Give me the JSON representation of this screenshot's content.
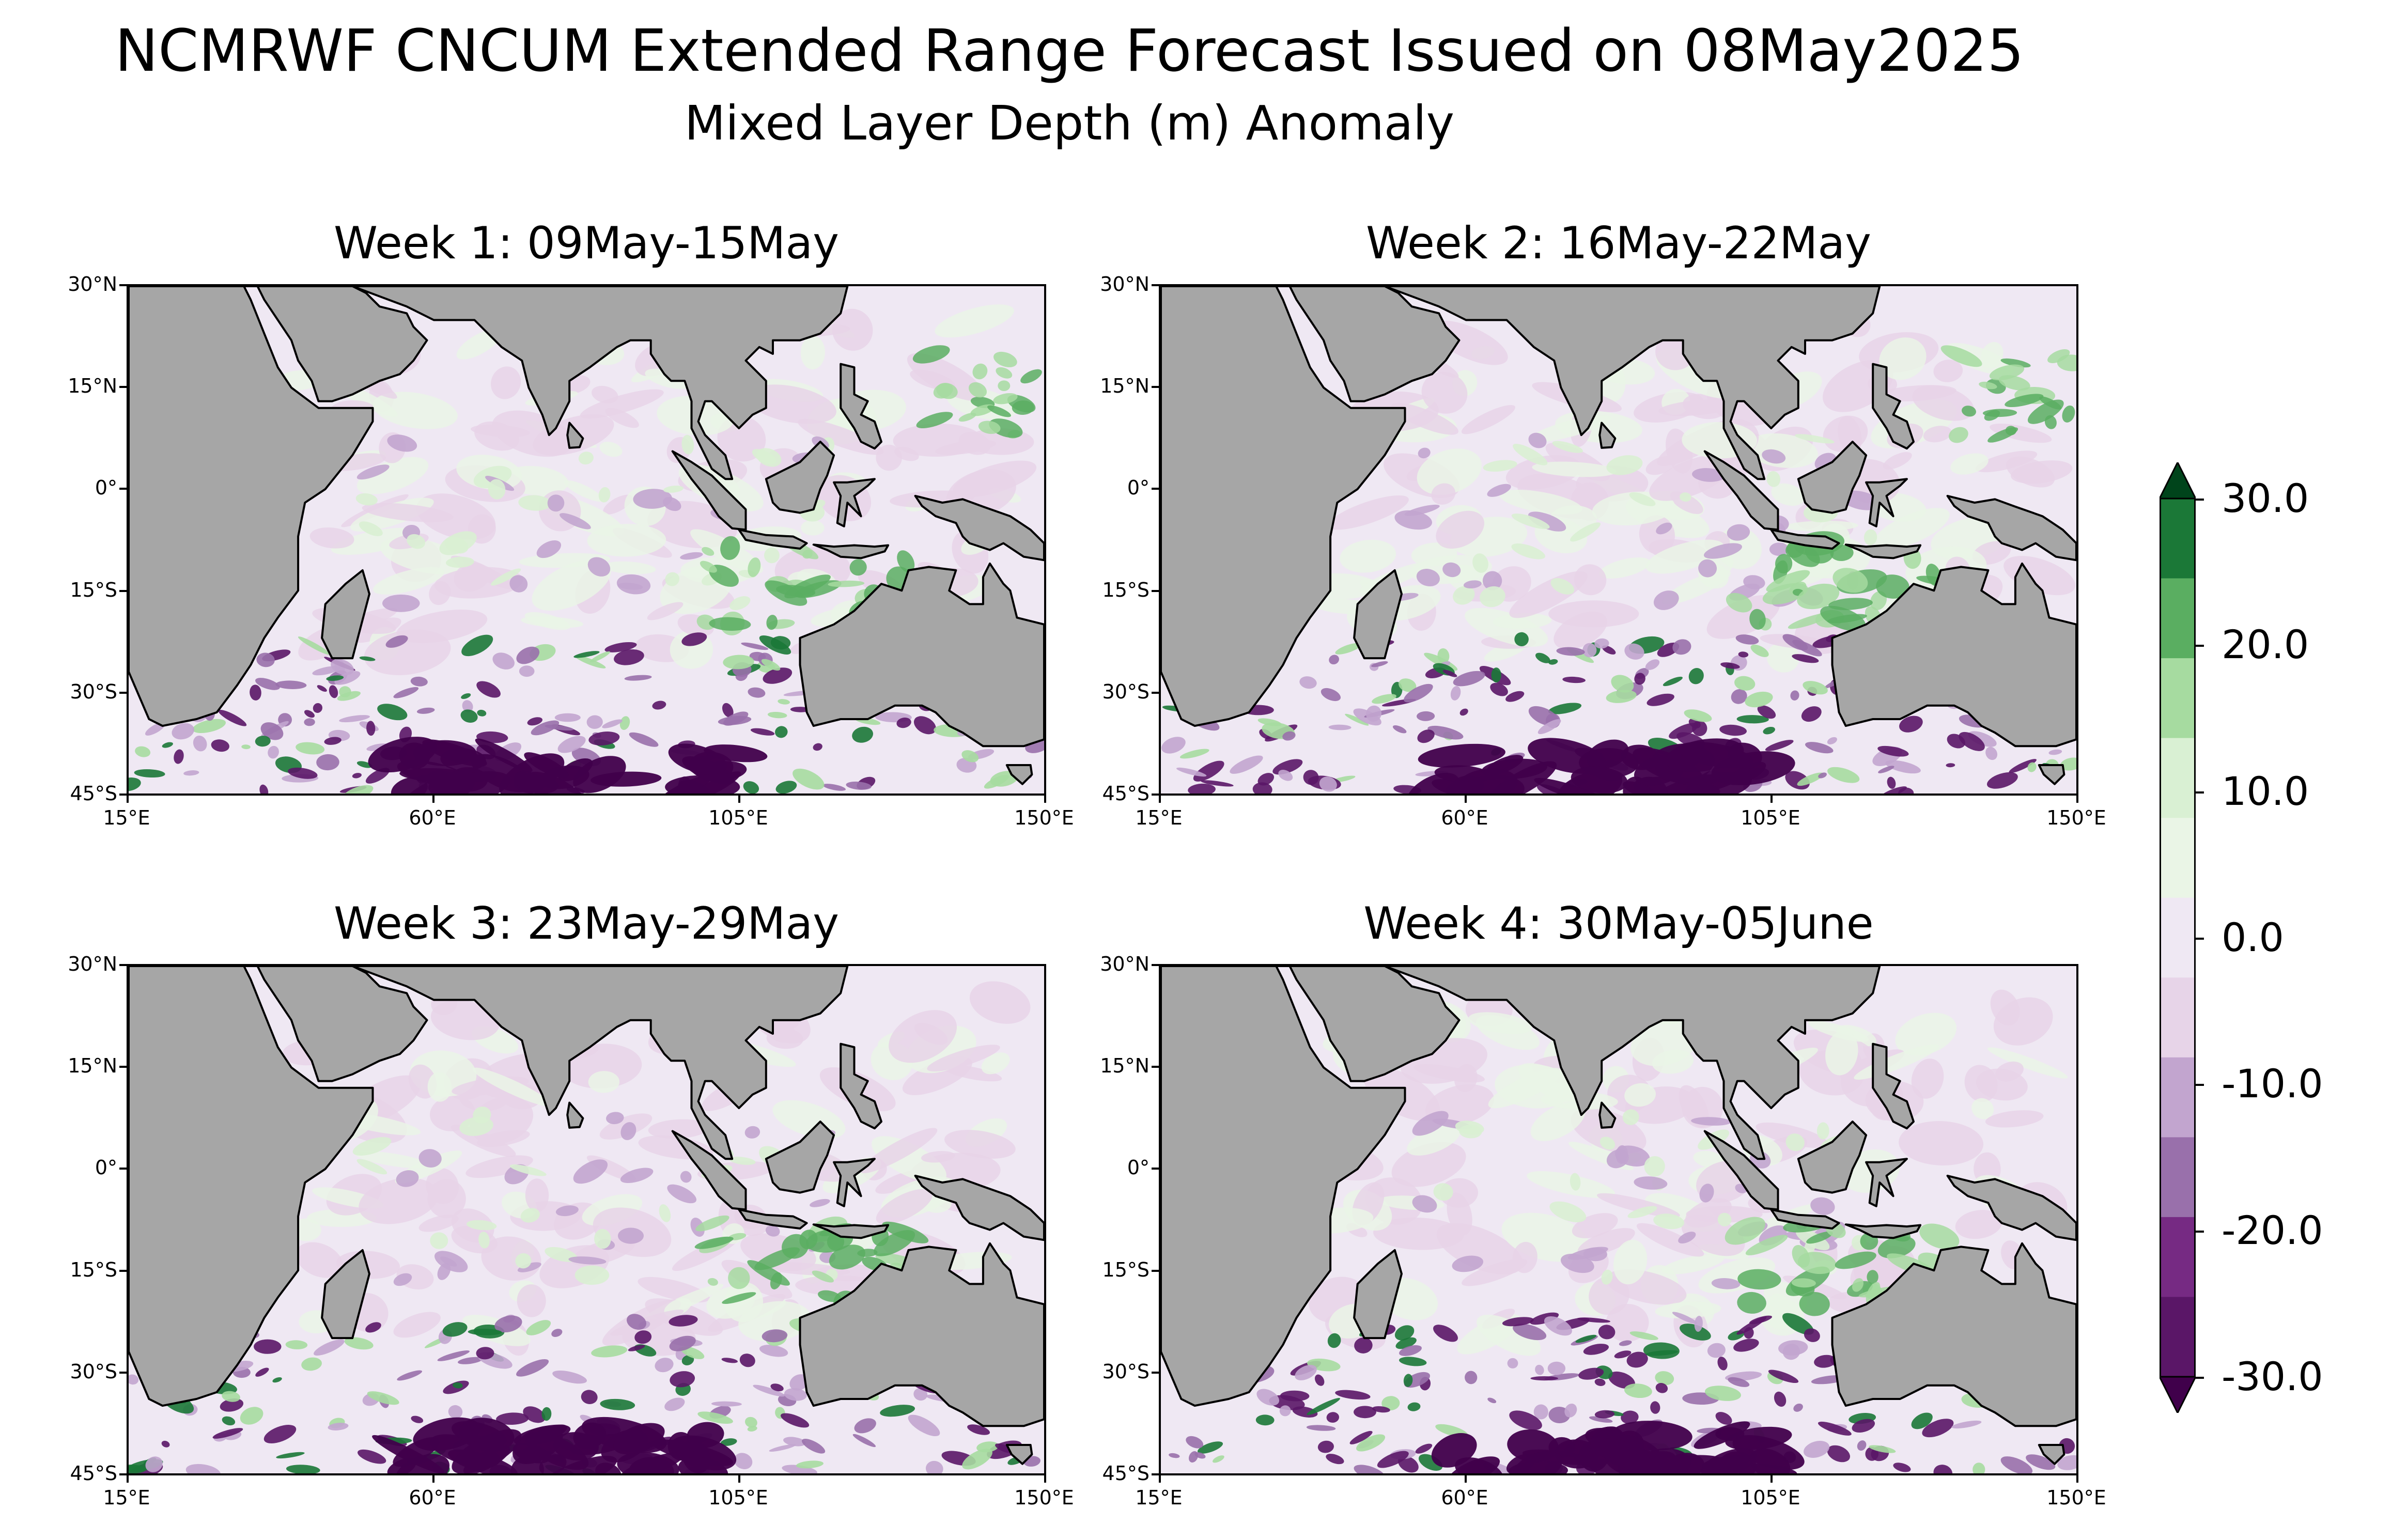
{
  "header": {
    "title": "NCMRWF CNCUM Extended Range Forecast Issued on 08May2025",
    "subtitle": "Mixed Layer Depth (m) Anomaly"
  },
  "panels": [
    {
      "title": "Week 1: 09May-15May"
    },
    {
      "title": "Week 2: 16May-22May"
    },
    {
      "title": "Week 3: 23May-29May"
    },
    {
      "title": "Week 4: 30May-05June"
    }
  ],
  "axes": {
    "lat_ticks": [
      "30°N",
      "15°N",
      "0°",
      "15°S",
      "30°S",
      "45°S"
    ],
    "lon_ticks": [
      "15°E",
      "60°E",
      "105°E",
      "150°E"
    ],
    "lat_range": [
      -45,
      30
    ],
    "lon_range": [
      15,
      150
    ]
  },
  "colorbar": {
    "labels": [
      "30.0",
      "20.0",
      "10.0",
      "0.0",
      "-10.0",
      "-20.0",
      "-30.0"
    ],
    "range": [
      -30,
      30
    ],
    "colors": [
      "#40004b",
      "#5a1667",
      "#762a83",
      "#9970ab",
      "#c2a5cf",
      "#e7d4e8",
      "#efe8f3",
      "#eaf5e6",
      "#d9f0d3",
      "#a6dba0",
      "#5aae61",
      "#1b7837",
      "#00441b"
    ],
    "land_color": "#a6a6a6"
  }
}
